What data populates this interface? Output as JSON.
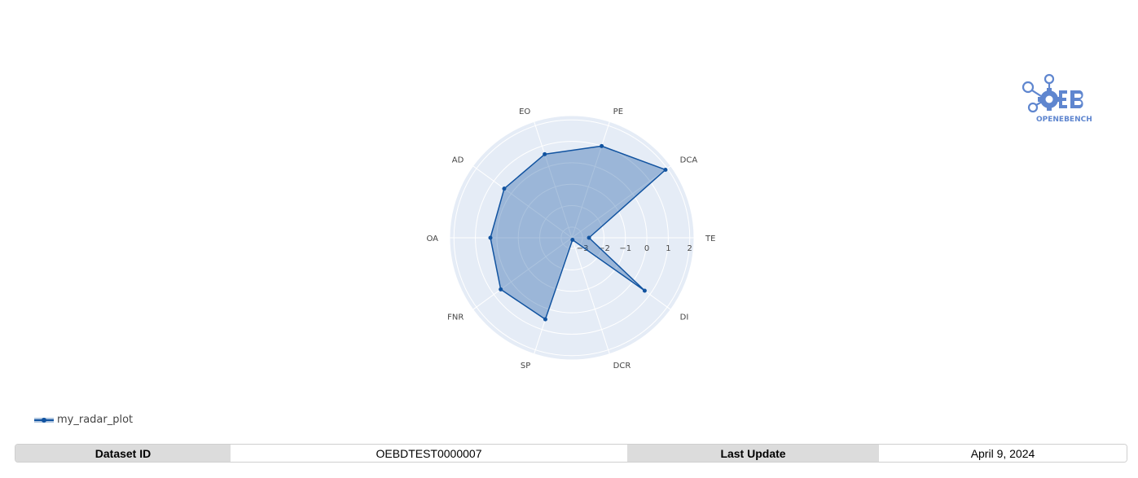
{
  "chart_data": {
    "type": "radar",
    "axes": [
      "TE",
      "DCA",
      "PE",
      "EO",
      "AD",
      "OA",
      "FNR",
      "SP",
      "DCR",
      "DI"
    ],
    "radial_ticks": [
      "−3",
      "−2",
      "−1",
      "0",
      "1",
      "2"
    ],
    "radial_range": [
      -3.5,
      2.2
    ],
    "series": [
      {
        "name": "my_radar_plot",
        "values": [
          -2.7,
          1.9,
          1.0,
          0.6,
          0.4,
          0.3,
          0.6,
          0.5,
          -3.4,
          0.7
        ],
        "color": "#1153a0",
        "fill": "rgba(17,83,160,0.35)"
      }
    ],
    "legend_position": "bottom-left",
    "grid": true
  },
  "logo": {
    "text": "OPENEBENCH",
    "color": "#5f86cf"
  },
  "info": {
    "dataset_label": "Dataset ID",
    "dataset_value": "OEBDTEST0000007",
    "update_label": "Last Update",
    "update_value": "April 9, 2024"
  }
}
